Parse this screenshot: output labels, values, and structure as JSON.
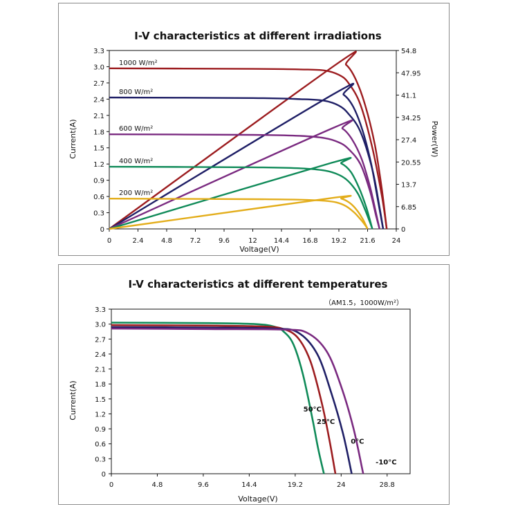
{
  "chart_data": [
    {
      "type": "line",
      "title": "I-V characteristics at different irradiations",
      "xlabel": "Voltage(V)",
      "ylabel": "Current(A)",
      "y2label": "Power(W)",
      "xlim": [
        0,
        24
      ],
      "ylim": [
        0,
        3.3
      ],
      "y2lim": [
        0,
        54.8
      ],
      "x_ticks": [
        "0",
        "2.4",
        "4.8",
        "7.2",
        "9.6",
        "12",
        "14.4",
        "16.8",
        "19.2",
        "21.6",
        "24"
      ],
      "y_ticks": [
        "0",
        "0.3",
        "0.6",
        "0.9",
        "1.2",
        "1.5",
        "1.8",
        "2.1",
        "2.4",
        "2.7",
        "3.0",
        "3.3"
      ],
      "y2_ticks": [
        "0",
        "6.85",
        "13.7",
        "20.55",
        "27.4",
        "34.25",
        "41.1",
        "47.95",
        "54.8"
      ],
      "grid": false,
      "series": [
        {
          "name": "1000 W/m²",
          "color": "#9c1c1f",
          "iv": [
            [
              0,
              2.97
            ],
            [
              12,
              2.96
            ],
            [
              16,
              2.95
            ],
            [
              18,
              2.93
            ],
            [
              19.2,
              2.85
            ],
            [
              20,
              2.7
            ],
            [
              21,
              2.3
            ],
            [
              22,
              1.5
            ],
            [
              22.8,
              0.6
            ],
            [
              23.2,
              0
            ]
          ],
          "power": [
            [
              0,
              0
            ],
            [
              19,
              50.6
            ],
            [
              19.8,
              50.4
            ],
            [
              20.6,
              46
            ],
            [
              21.4,
              38
            ],
            [
              22.2,
              26
            ],
            [
              22.8,
              12
            ],
            [
              23.2,
              0
            ]
          ]
        },
        {
          "name": "800 W/m²",
          "color": "#1f1f66",
          "iv": [
            [
              0,
              2.43
            ],
            [
              12,
              2.42
            ],
            [
              16,
              2.4
            ],
            [
              18,
              2.37
            ],
            [
              19.2,
              2.28
            ],
            [
              20,
              2.13
            ],
            [
              21,
              1.8
            ],
            [
              22,
              1.1
            ],
            [
              22.6,
              0.4
            ],
            [
              22.9,
              0
            ]
          ],
          "power": [
            [
              0,
              0
            ],
            [
              18.8,
              41.5
            ],
            [
              19.6,
              41.2
            ],
            [
              20.4,
              37.5
            ],
            [
              21.2,
              30
            ],
            [
              21.9,
              20
            ],
            [
              22.5,
              8
            ],
            [
              22.9,
              0
            ]
          ]
        },
        {
          "name": "600 W/m²",
          "color": "#7a2a80",
          "iv": [
            [
              0,
              1.75
            ],
            [
              12,
              1.74
            ],
            [
              16,
              1.72
            ],
            [
              18,
              1.68
            ],
            [
              19.2,
              1.6
            ],
            [
              20,
              1.48
            ],
            [
              21,
              1.2
            ],
            [
              21.8,
              0.7
            ],
            [
              22.3,
              0.25
            ],
            [
              22.6,
              0
            ]
          ],
          "power": [
            [
              0,
              0
            ],
            [
              18.7,
              31
            ],
            [
              19.5,
              30.8
            ],
            [
              20.3,
              27.5
            ],
            [
              21.1,
              21.5
            ],
            [
              21.8,
              13
            ],
            [
              22.3,
              5
            ],
            [
              22.6,
              0
            ]
          ]
        },
        {
          "name": "400 W/m²",
          "color": "#0f8a58",
          "iv": [
            [
              0,
              1.15
            ],
            [
              12,
              1.14
            ],
            [
              16,
              1.12
            ],
            [
              18,
              1.08
            ],
            [
              19.2,
              1.0
            ],
            [
              20,
              0.88
            ],
            [
              20.8,
              0.65
            ],
            [
              21.4,
              0.35
            ],
            [
              21.8,
              0.12
            ],
            [
              22.0,
              0
            ]
          ],
          "power": [
            [
              0,
              0
            ],
            [
              18.6,
              20.3
            ],
            [
              19.4,
              20.1
            ],
            [
              20.2,
              17.5
            ],
            [
              20.9,
              12.5
            ],
            [
              21.5,
              6.5
            ],
            [
              22.0,
              0
            ]
          ]
        },
        {
          "name": "200 W/m²",
          "color": "#e3ad1a",
          "iv": [
            [
              0,
              0.56
            ],
            [
              12,
              0.55
            ],
            [
              16,
              0.54
            ],
            [
              18,
              0.52
            ],
            [
              19,
              0.49
            ],
            [
              19.8,
              0.42
            ],
            [
              20.5,
              0.3
            ],
            [
              21,
              0.18
            ],
            [
              21.4,
              0.07
            ],
            [
              21.6,
              0
            ]
          ],
          "power": [
            [
              0,
              0
            ],
            [
              18.6,
              9.5
            ],
            [
              19.4,
              9.3
            ],
            [
              20.1,
              8.0
            ],
            [
              20.7,
              5.8
            ],
            [
              21.2,
              3.0
            ],
            [
              21.6,
              0
            ]
          ]
        }
      ]
    },
    {
      "type": "line",
      "title": "I-V characteristics at different temperatures",
      "subtitle": "（AM1.5，1000W/m²）",
      "xlabel": "Voltage(V)",
      "ylabel": "Current(A)",
      "xlim": [
        0,
        31.2
      ],
      "ylim": [
        0,
        3.3
      ],
      "x_ticks": [
        "0",
        "4.8",
        "9.6",
        "14.4",
        "19.2",
        "24",
        "28.8"
      ],
      "y_ticks": [
        "0",
        "0.3",
        "0.6",
        "0.9",
        "1.2",
        "1.5",
        "1.8",
        "2.1",
        "2.4",
        "2.7",
        "3.0",
        "3.3"
      ],
      "grid": false,
      "series": [
        {
          "name": "50°C",
          "color": "#0f8a58",
          "iv": [
            [
              0,
              3.03
            ],
            [
              10,
              3.02
            ],
            [
              15,
              3.0
            ],
            [
              17,
              2.95
            ],
            [
              18,
              2.85
            ],
            [
              19,
              2.6
            ],
            [
              20,
              2.0
            ],
            [
              21,
              1.1
            ],
            [
              21.6,
              0.5
            ],
            [
              22.2,
              0
            ]
          ]
        },
        {
          "name": "25°C",
          "color": "#9c1c1f",
          "iv": [
            [
              0,
              2.98
            ],
            [
              10,
              2.97
            ],
            [
              16,
              2.95
            ],
            [
              18,
              2.9
            ],
            [
              19.5,
              2.72
            ],
            [
              20.8,
              2.25
            ],
            [
              22,
              1.4
            ],
            [
              22.8,
              0.65
            ],
            [
              23.4,
              0
            ]
          ]
        },
        {
          "name": "0°C",
          "color": "#1f1f66",
          "iv": [
            [
              0,
              2.94
            ],
            [
              10,
              2.93
            ],
            [
              17,
              2.91
            ],
            [
              19.5,
              2.83
            ],
            [
              21.5,
              2.4
            ],
            [
              23,
              1.6
            ],
            [
              24.2,
              0.8
            ],
            [
              25.1,
              0
            ]
          ]
        },
        {
          "name": "-10°C",
          "color": "#7a2a80",
          "iv": [
            [
              0,
              2.91
            ],
            [
              10,
              2.9
            ],
            [
              18,
              2.89
            ],
            [
              20.5,
              2.82
            ],
            [
              22.5,
              2.45
            ],
            [
              24,
              1.75
            ],
            [
              25.3,
              0.9
            ],
            [
              26.3,
              0
            ]
          ]
        }
      ]
    }
  ]
}
